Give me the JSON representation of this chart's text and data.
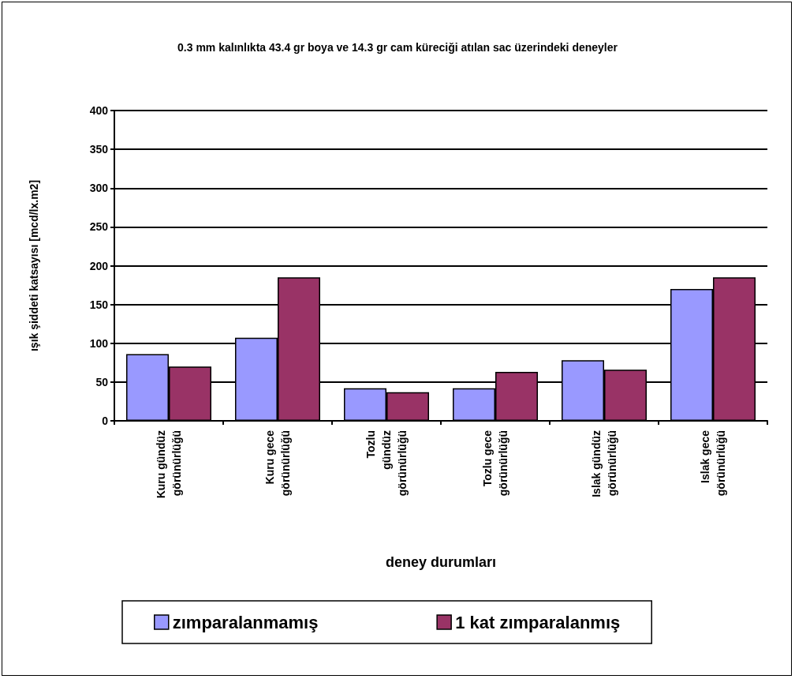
{
  "chart_data": {
    "type": "bar",
    "title": "0.3 mm kalınlıkta 43.4 gr boya ve 14.3 gr cam küreciği atılan sac üzerindeki deneyler",
    "xlabel": "deney durumları",
    "ylabel": "ışık şiddeti katsayısı [mcd/lx.m2]",
    "categories": [
      "Kuru gündüz\ngörünürlüğü",
      "Kuru gece\ngörünürlüğü",
      "Tozlu\ngündüz\ngörünürlüğü",
      "Tozlu gece\ngörünürlüğü",
      "Islak gündüz\ngörünürlüğü",
      "Islak gece\ngörünürlüğü"
    ],
    "series": [
      {
        "name": "zımparalanmamış",
        "color": "#9999ff",
        "values": [
          86,
          107,
          42,
          42,
          78,
          170
        ]
      },
      {
        "name": "1 kat zımparalanmış",
        "color": "#993366",
        "values": [
          70,
          185,
          37,
          63,
          66,
          185
        ]
      }
    ],
    "ylim": [
      0,
      400
    ],
    "yticks": [
      0,
      50,
      100,
      150,
      200,
      250,
      300,
      350,
      400
    ],
    "grid": "y",
    "legend": "bottom"
  }
}
